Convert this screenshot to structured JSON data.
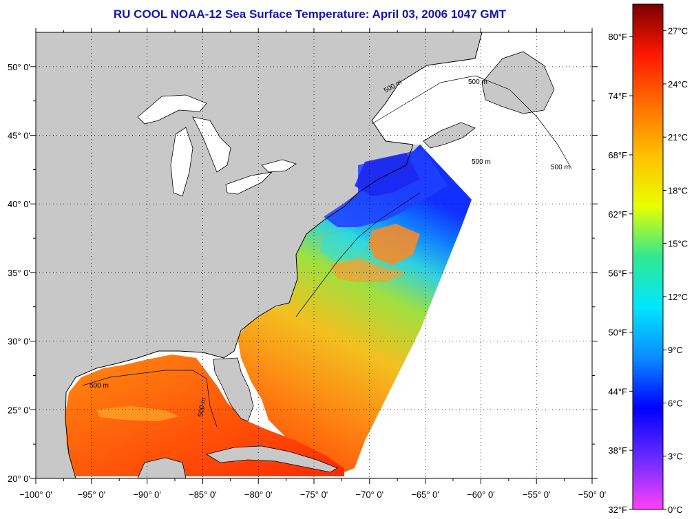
{
  "title": "RU COOL  NOAA-12  Sea Surface Temperature:  April 03, 2006 1047 GMT",
  "map": {
    "lon_range": [
      -100,
      -50
    ],
    "lat_range": [
      20,
      52.5
    ],
    "lon_labels": [
      "−100° 0'",
      "−95° 0'",
      "−90° 0'",
      "−85° 0'",
      "−80° 0'",
      "−75° 0'",
      "−70° 0'",
      "−65° 0'",
      "−60° 0'",
      "−55° 0'",
      "−50° 0'"
    ],
    "lat_labels": [
      "20° 0'",
      "25° 0'",
      "30° 0'",
      "35° 0'",
      "40° 0'",
      "45° 0'",
      "50° 0'"
    ],
    "grid": "dotted",
    "land_color": "#c8c8c8",
    "lake_color": "#ffffff",
    "no_data_color": "#ffffff",
    "isobath_labels": [
      "500 m",
      "500 m",
      "500 m",
      "500 m",
      "500 m",
      "500 m"
    ]
  },
  "colorbar": {
    "fahrenheit_labels": [
      "32°F",
      "38°F",
      "44°F",
      "50°F",
      "56°F",
      "62°F",
      "68°F",
      "74°F",
      "80°F"
    ],
    "celsius_labels": [
      "0°C",
      "3°C",
      "6°C",
      "9°C",
      "12°C",
      "15°C",
      "18°C",
      "21°C",
      "24°C",
      "27°C"
    ],
    "range_c": [
      0,
      28.5
    ],
    "stops": [
      "#ff40ff",
      "#6a2cff",
      "#0000ff",
      "#0a8cff",
      "#00e6ff",
      "#30e890",
      "#e8ff00",
      "#ffc000",
      "#ff7000",
      "#ff1800",
      "#7a0000"
    ]
  }
}
